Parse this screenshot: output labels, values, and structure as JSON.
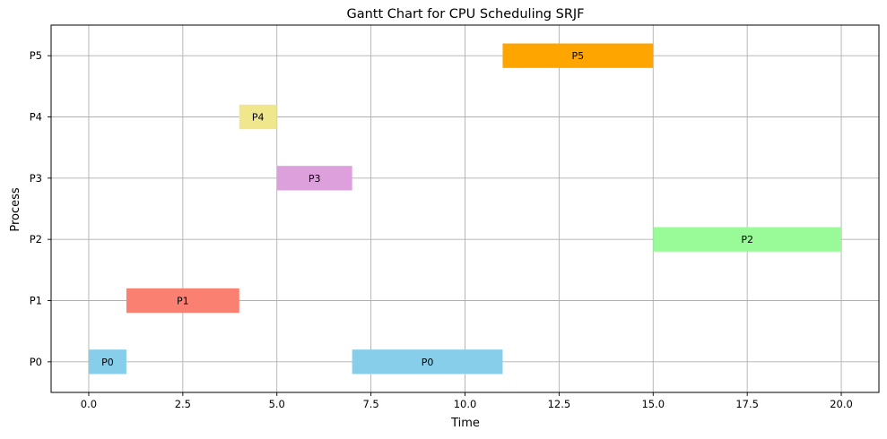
{
  "chart_data": {
    "type": "gantt",
    "title": "Gantt Chart for CPU Scheduling SRJF",
    "xlabel": "Time",
    "ylabel": "Process",
    "xlim": [
      -1.0,
      21.0
    ],
    "xticks": [
      0.0,
      2.5,
      5.0,
      7.5,
      10.0,
      12.5,
      15.0,
      17.5,
      20.0
    ],
    "xtick_labels": [
      "0.0",
      "2.5",
      "5.0",
      "7.5",
      "10.0",
      "12.5",
      "15.0",
      "17.5",
      "20.0"
    ],
    "categories": [
      "P0",
      "P1",
      "P2",
      "P3",
      "P4",
      "P5"
    ],
    "grid": true,
    "tasks": [
      {
        "process": "P0",
        "start": 0,
        "end": 1,
        "label": "P0",
        "color": "#87ceeb"
      },
      {
        "process": "P1",
        "start": 1,
        "end": 4,
        "label": "P1",
        "color": "#fa8072"
      },
      {
        "process": "P4",
        "start": 4,
        "end": 5,
        "label": "P4",
        "color": "#f0e68c"
      },
      {
        "process": "P3",
        "start": 5,
        "end": 7,
        "label": "P3",
        "color": "#dda0dd"
      },
      {
        "process": "P0",
        "start": 7,
        "end": 11,
        "label": "P0",
        "color": "#87ceeb"
      },
      {
        "process": "P5",
        "start": 11,
        "end": 15,
        "label": "P5",
        "color": "#ffa500"
      },
      {
        "process": "P2",
        "start": 15,
        "end": 20,
        "label": "P2",
        "color": "#98fb98"
      }
    ]
  }
}
